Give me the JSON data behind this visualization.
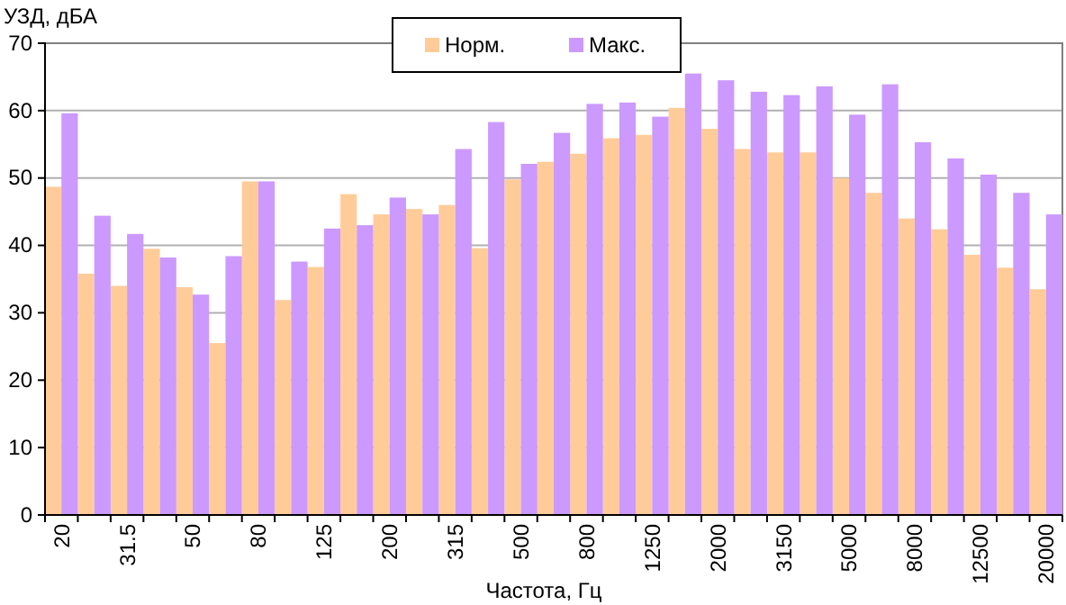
{
  "chart_data": {
    "type": "bar",
    "ylabel": "УЗД, дБА",
    "xlabel": "Частота, Гц",
    "categories": [
      "20",
      null,
      "31.5",
      null,
      "50",
      null,
      "80",
      null,
      "125",
      null,
      "200",
      null,
      "315",
      null,
      "500",
      null,
      "800",
      null,
      "1250",
      null,
      "2000",
      null,
      "3150",
      null,
      "5000",
      null,
      "8000",
      null,
      "12500",
      null,
      "20000"
    ],
    "series": [
      {
        "name": "Норм.",
        "color": "#ffcc99",
        "values": [
          48.7,
          35.8,
          34,
          39.5,
          33.8,
          25.5,
          49.5,
          31.9,
          36.8,
          47.6,
          44.6,
          45.4,
          46,
          39.6,
          49.8,
          52.4,
          53.6,
          55.9,
          56.4,
          60.4,
          57.3,
          54.3,
          53.8,
          53.8,
          50,
          47.8,
          44,
          42.4,
          38.6,
          36.7,
          33.5
        ]
      },
      {
        "name": "Макс.",
        "color": "#cc99ff",
        "values": [
          59.6,
          44.4,
          41.7,
          38.2,
          32.7,
          38.4,
          49.5,
          37.6,
          42.5,
          43,
          47.1,
          44.6,
          54.3,
          58.3,
          52.1,
          56.7,
          61,
          61.2,
          59.1,
          65.5,
          64.5,
          62.8,
          62.3,
          63.6,
          59.4,
          63.9,
          55.3,
          52.9,
          50.5,
          47.8,
          44.6
        ]
      }
    ],
    "ylim": [
      0,
      70
    ],
    "yticks": [
      0,
      10,
      20,
      30,
      40,
      50,
      60,
      70
    ],
    "grid": "y",
    "legend": "top"
  }
}
